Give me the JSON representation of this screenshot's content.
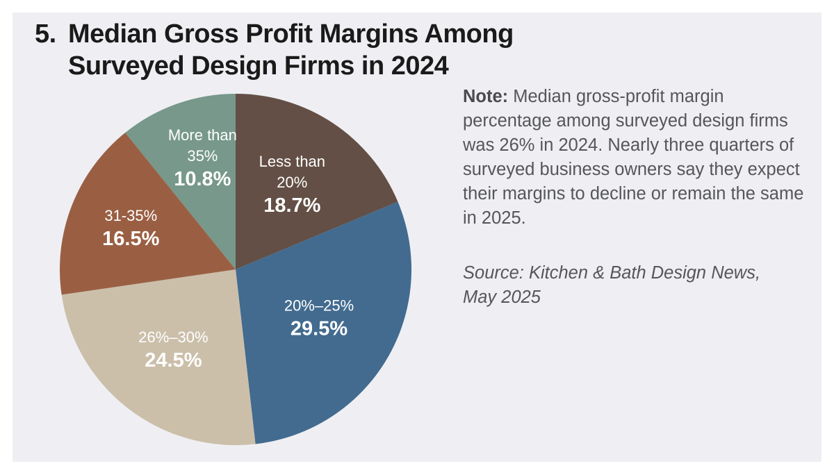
{
  "chart_data": {
    "type": "pie",
    "title_number": "5.",
    "title_line1": "Median Gross Profit Margins Among",
    "title_line2": "Surveyed Design Firms in 2024",
    "start": "12 o'clock, clockwise",
    "slices": [
      {
        "label_lines": [
          "Less than",
          "20%"
        ],
        "label": "Less than 20%",
        "value": 18.7,
        "value_label": "18.7%",
        "color": "#634f45"
      },
      {
        "label_lines": [
          "20%–25%"
        ],
        "label": "20%–25%",
        "value": 29.5,
        "value_label": "29.5%",
        "color": "#426b8f"
      },
      {
        "label_lines": [
          "26%–30%"
        ],
        "label": "26%–30%",
        "value": 24.5,
        "value_label": "24.5%",
        "color": "#cbbfaa"
      },
      {
        "label_lines": [
          "31-35%"
        ],
        "label": "31-35%",
        "value": 16.5,
        "value_label": "16.5%",
        "color": "#9a5f43"
      },
      {
        "label_lines": [
          "More than",
          "35%"
        ],
        "label": "More than 35%",
        "value": 10.8,
        "value_label": "10.8%",
        "color": "#77988a"
      }
    ]
  },
  "note": {
    "label": "Note:",
    "text": " Median gross-profit margin percentage among surveyed design firms was 26% in 2024. Nearly three quarters of surveyed business owners say they expect their margins to decline or remain the same in 2025."
  },
  "source": {
    "line1": "Source: Kitchen & Bath Design News,",
    "line2": "May 2025"
  }
}
